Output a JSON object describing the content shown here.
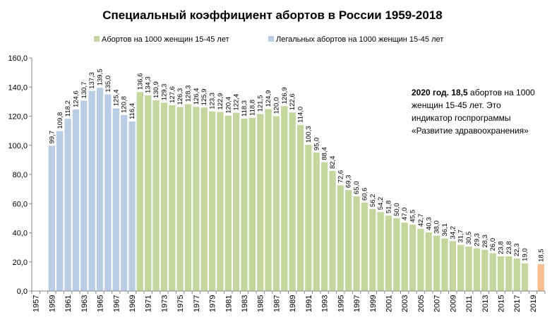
{
  "chart_data": {
    "type": "bar",
    "title": "Специальный коэффициент абортов в России 1959-2018",
    "legend": [
      {
        "label": "Абортов на 1000 женщин 15-45 лет",
        "color": "#c3d69b"
      },
      {
        "label": "Легальных абортов на 1000 женщин 15-45 лет",
        "color": "#b9cde5"
      }
    ],
    "ylim": [
      0,
      160
    ],
    "yticks": [
      "0,0",
      "20,0",
      "40,0",
      "60,0",
      "80,0",
      "100,0",
      "120,0",
      "140,0",
      "160,0"
    ],
    "xticks": [
      "1957",
      "1959",
      "1961",
      "1963",
      "1965",
      "1967",
      "1969",
      "1971",
      "1973",
      "1975",
      "1977",
      "1979",
      "1981",
      "1983",
      "1985",
      "1987",
      "1989",
      "1991",
      "1993",
      "1995",
      "1997",
      "1999",
      "2001",
      "2003",
      "2005",
      "2007",
      "2009",
      "2011",
      "2013",
      "2015",
      "2017",
      "2019"
    ],
    "x_first_year": 1957,
    "x_last_year": 2020,
    "series": [
      {
        "name": "Легальных абортов на 1000 женщин 15-45 лет",
        "color": "#b9cde5",
        "years": [
          1959,
          1960,
          1961,
          1962,
          1963,
          1964,
          1965,
          1966,
          1967,
          1968,
          1969
        ],
        "values": [
          99.7,
          109.8,
          118.2,
          124.6,
          130.7,
          137.3,
          139.5,
          135.0,
          125.4,
          120.8,
          116.4
        ],
        "labels": [
          "99,7",
          "109,8",
          "118,2",
          "124,6",
          "130,7",
          "137,3",
          "139,5",
          "135,0",
          "125,4",
          "120,8",
          "116,4"
        ]
      },
      {
        "name": "Абортов на 1000 женщин 15-45 лет",
        "color": "#c3d69b",
        "years": [
          1970,
          1971,
          1972,
          1973,
          1974,
          1975,
          1976,
          1977,
          1978,
          1979,
          1980,
          1981,
          1982,
          1983,
          1984,
          1985,
          1986,
          1987,
          1988,
          1989,
          1990,
          1991,
          1992,
          1993,
          1994,
          1995,
          1996,
          1997,
          1998,
          1999,
          2000,
          2001,
          2002,
          2003,
          2004,
          2005,
          2006,
          2007,
          2008,
          2009,
          2010,
          2011,
          2012,
          2013,
          2014,
          2015,
          2016,
          2017,
          2018
        ],
        "values": [
          136.6,
          134.3,
          130.9,
          129.3,
          127.6,
          126.3,
          128.3,
          126.4,
          125.9,
          123.3,
          122.9,
          120.4,
          122.4,
          118.3,
          118.8,
          121.5,
          124.9,
          120.0,
          126.9,
          122.6,
          114.0,
          100.3,
          95.0,
          88.4,
          82.4,
          72.6,
          69.3,
          65.0,
          60.6,
          56.2,
          54.2,
          51.8,
          50.0,
          47.0,
          45.5,
          42.7,
          40.3,
          38.0,
          36.1,
          34.2,
          31.7,
          30.5,
          29.3,
          28.3,
          26.0,
          23.8,
          23.8,
          22.3,
          19.0
        ],
        "labels": [
          "136,6",
          "134,3",
          "130,9",
          "129,3",
          "127,6",
          "126,3",
          "128,3",
          "126,4",
          "125,9",
          "123,3",
          "122,9",
          "120,4",
          "122,4",
          "118,3",
          "118,8",
          "121,5",
          "124,9",
          "120,0",
          "126,9",
          "122,6",
          "114,0",
          "100,3",
          "95,0",
          "88,4",
          "82,4",
          "72,6",
          "69,3",
          "65,0",
          "60,6",
          "56,2",
          "54,2",
          "51,8",
          "50,0",
          "47,0",
          "45,5",
          "42,7",
          "40,3",
          "38,0",
          "36,1",
          "34,2",
          "31,7",
          "30,5",
          "29,3",
          "28,3",
          "26,0",
          "23,8",
          "23,8",
          "22,3",
          "19,0"
        ]
      },
      {
        "name": "2020",
        "color": "#fac090",
        "years": [
          2020
        ],
        "values": [
          18.5
        ],
        "labels": [
          "18,5"
        ]
      }
    ]
  },
  "annotation": {
    "bold": "2020 год. 18,5",
    "rest": " абортов на 1000 женщин 15-45 лет. Это индикатор госпрограммы «Развитие здравоохранения»"
  }
}
